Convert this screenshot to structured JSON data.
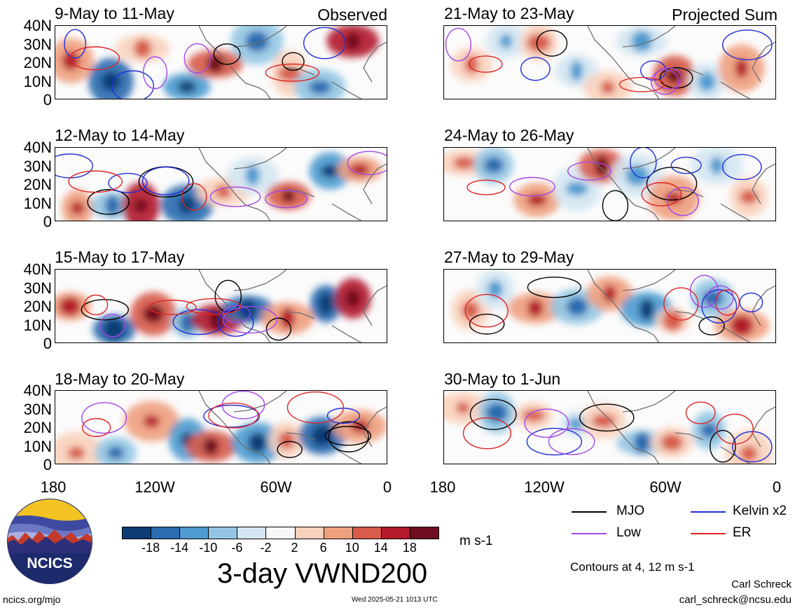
{
  "panels_left": [
    {
      "title": "9-May to 11-May",
      "label": "Observed"
    },
    {
      "title": "12-May to 14-May",
      "label": ""
    },
    {
      "title": "15-May to 17-May",
      "label": ""
    },
    {
      "title": "18-May to 20-May",
      "label": ""
    }
  ],
  "panels_right": [
    {
      "title": "21-May to 23-May",
      "label": "Projected Sum"
    },
    {
      "title": "24-May to 26-May",
      "label": ""
    },
    {
      "title": "27-May to 29-May",
      "label": ""
    },
    {
      "title": "30-May to 1-Jun",
      "label": ""
    }
  ],
  "lat_labels": [
    "40N",
    "30N",
    "20N",
    "10N",
    "0"
  ],
  "lon_labels": [
    "180",
    "120W",
    "60W",
    "0"
  ],
  "legend": {
    "items": [
      {
        "label": "MJO",
        "color": "#000000"
      },
      {
        "label": "Kelvin x2",
        "color": "#1f2fd6"
      },
      {
        "label": "Low",
        "color": "#a347e6"
      },
      {
        "label": "ER",
        "color": "#e02424"
      }
    ],
    "contours_note": "Contours at 4, 12 m s-1"
  },
  "colorbar": {
    "labels": [
      "-18",
      "-14",
      "-10",
      "-6",
      "-2",
      "2",
      "6",
      "10",
      "14",
      "18"
    ],
    "colors": [
      "#0b3d74",
      "#2a6cb0",
      "#4d9bd0",
      "#94c6e3",
      "#d4e7f2",
      "#f7f7f7",
      "#f9d2bd",
      "#efa07e",
      "#d75b4a",
      "#b31b2c",
      "#6e0d1f"
    ],
    "units": "m s-1"
  },
  "main_title": "3-day VWND200",
  "logo": {
    "text": "NCICS"
  },
  "footer": {
    "url": "ncics.org/mjo",
    "timestamp": "Wed 2025-05-21 1013 UTC",
    "author": "Carl Schreck",
    "email": "carl_schreck@ncsu.edu"
  }
}
